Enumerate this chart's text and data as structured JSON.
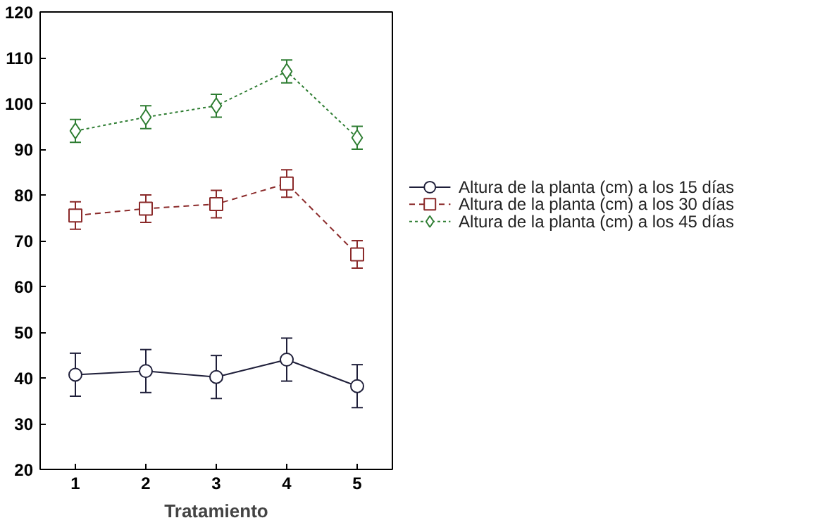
{
  "chart_data": {
    "type": "line",
    "xlabel": "Tratamiento",
    "x": [
      1,
      2,
      3,
      4,
      5
    ],
    "xlim": [
      0.5,
      5.5
    ],
    "xticks": [
      1,
      2,
      3,
      4,
      5
    ],
    "ylim": [
      20,
      120
    ],
    "yticks": [
      20,
      30,
      40,
      50,
      60,
      70,
      80,
      90,
      100,
      110,
      120
    ],
    "grid": false,
    "legend": "right",
    "series": [
      {
        "name": "Altura de la planta (cm) a los 15 días",
        "color": "#1f1f3a",
        "marker": "circle",
        "line_style": "solid",
        "values": [
          40.7,
          41.5,
          40.2,
          44,
          38.2
        ],
        "errors": [
          4.7,
          4.7,
          4.7,
          4.7,
          4.7
        ]
      },
      {
        "name": "Altura de la planta (cm) a los 30 días",
        "color": "#8b2a2a",
        "marker": "square",
        "line_style": "dashed",
        "values": [
          75.5,
          77,
          78,
          82.5,
          67
        ],
        "errors": [
          3,
          3,
          3,
          3,
          3
        ]
      },
      {
        "name": "Altura de la planta (cm) a los 45 días",
        "color": "#2e7d32",
        "marker": "diamond",
        "line_style": "dotted",
        "values": [
          94,
          97,
          99.5,
          107,
          92.5
        ],
        "errors": [
          2.5,
          2.5,
          2.5,
          2.5,
          2.5
        ]
      }
    ]
  }
}
